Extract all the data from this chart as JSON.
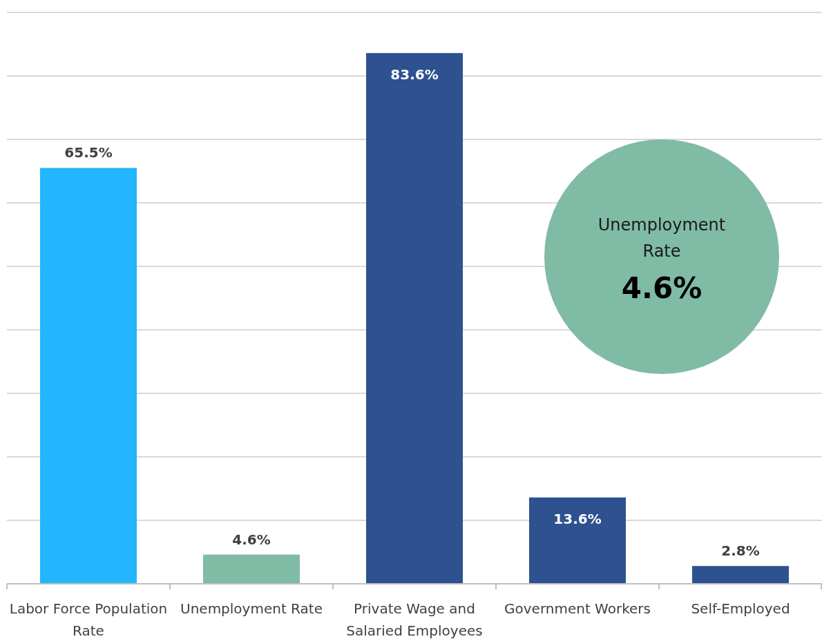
{
  "chart_data": {
    "type": "bar",
    "categories": [
      "Labor Force Population Rate",
      "Unemployment Rate",
      "Private Wage and Salaried Employees",
      "Government Workers",
      "Self-Employed"
    ],
    "values": [
      65.5,
      4.6,
      83.6,
      13.6,
      2.8
    ],
    "colors": [
      "#23b5fd",
      "#80bba5",
      "#2e5190",
      "#2e5190",
      "#2e5190"
    ],
    "value_labels": [
      "65.5%",
      "4.6%",
      "83.6%",
      "13.6%",
      "2.8%"
    ],
    "ylim": [
      0,
      90
    ],
    "yticks": [
      {
        "value": 0,
        "label": null
      },
      {
        "value": 10,
        "label": null
      },
      {
        "value": 20,
        "label": null
      },
      {
        "value": 30,
        "label": null
      },
      {
        "value": 40,
        "label": null
      },
      {
        "value": 50,
        "label": null
      },
      {
        "value": 60,
        "label": null
      },
      {
        "value": 70,
        "label": null
      },
      {
        "value": 80,
        "label": null
      },
      {
        "value": 90,
        "label": null
      }
    ],
    "grid": "y",
    "tick_labels": "x",
    "annotations": [
      "Unemployment Rate",
      "4.6%"
    ]
  }
}
